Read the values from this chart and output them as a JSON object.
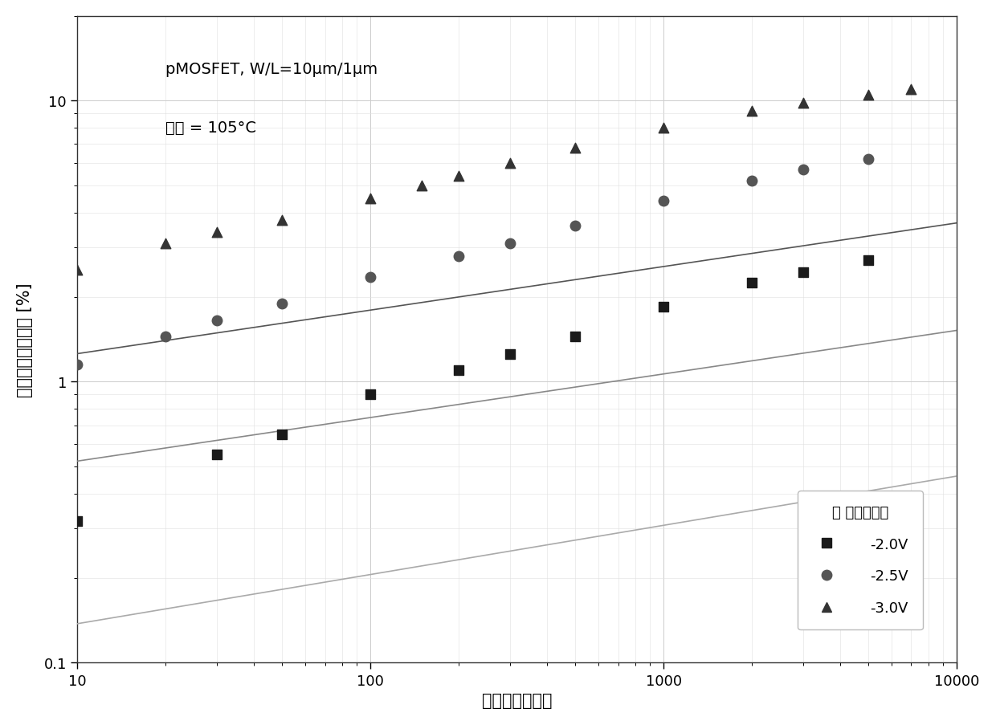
{
  "annotation_line1": "pMOSFET, W/L=10μm/1μm",
  "annotation_line2": "温度 = 105°C",
  "xlabel": "应力时间（秒）",
  "ylabel": "饱和漏电流变化量 [%]",
  "legend_title": "栎 应力电压：",
  "legend_labels": [
    "-2.0V",
    "-2.5V",
    "-3.0V"
  ],
  "xlim": [
    10,
    10000
  ],
  "ylim": [
    0.1,
    20
  ],
  "background_color": "#ffffff",
  "data_2V_x": [
    10,
    30,
    50,
    100,
    200,
    300,
    500,
    1000,
    2000,
    3000,
    5000
  ],
  "data_2V_y": [
    0.32,
    0.55,
    0.65,
    0.9,
    1.1,
    1.25,
    1.45,
    1.85,
    2.25,
    2.45,
    2.7
  ],
  "data_25V_x": [
    10,
    20,
    30,
    50,
    100,
    200,
    300,
    500,
    1000,
    2000,
    3000,
    5000
  ],
  "data_25V_y": [
    1.15,
    1.45,
    1.65,
    1.9,
    2.35,
    2.8,
    3.1,
    3.6,
    4.4,
    5.2,
    5.7,
    6.2
  ],
  "data_3V_x": [
    10,
    20,
    30,
    50,
    100,
    150,
    200,
    300,
    500,
    1000,
    2000,
    3000,
    5000,
    7000
  ],
  "data_3V_y": [
    2.5,
    3.1,
    3.4,
    3.75,
    4.5,
    5.0,
    5.4,
    6.0,
    6.8,
    8.0,
    9.2,
    9.8,
    10.5,
    11.0
  ],
  "fit_2V_A": 0.092,
  "fit_2V_n": 0.175,
  "fit_25V_A": 0.365,
  "fit_25V_n": 0.155,
  "fit_3V_A": 0.88,
  "fit_3V_n": 0.155,
  "color_2V": "#1a1a1a",
  "color_25V": "#555555",
  "color_3V": "#333333",
  "line_color_2V": "#aaaaaa",
  "line_color_25V": "#888888",
  "line_color_3V": "#555555",
  "marker_2V": "s",
  "marker_25V": "o",
  "marker_3V": "^",
  "marker_size": 9,
  "line_width": 1.2,
  "font_size_labels": 15,
  "font_size_ticks": 13,
  "font_size_annotation": 14,
  "font_size_legend": 13
}
